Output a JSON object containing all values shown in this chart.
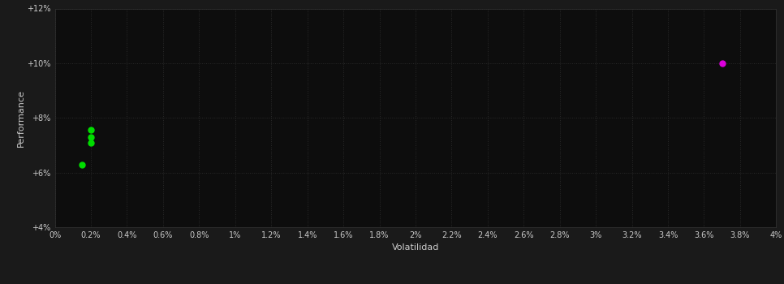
{
  "background_color": "#1a1a1a",
  "plot_bg_color": "#0d0d0d",
  "grid_color": "#2a2a2a",
  "text_color": "#cccccc",
  "xlabel": "Volatilidad",
  "ylabel": "Performance",
  "xlim": [
    0.0,
    0.04
  ],
  "ylim": [
    0.04,
    0.12
  ],
  "green_points": [
    [
      0.002,
      0.0755
    ],
    [
      0.002,
      0.073
    ],
    [
      0.002,
      0.071
    ],
    [
      0.0015,
      0.063
    ]
  ],
  "magenta_points": [
    [
      0.037,
      0.1
    ]
  ],
  "green_color": "#00dd00",
  "magenta_color": "#dd00dd",
  "point_size": 25
}
